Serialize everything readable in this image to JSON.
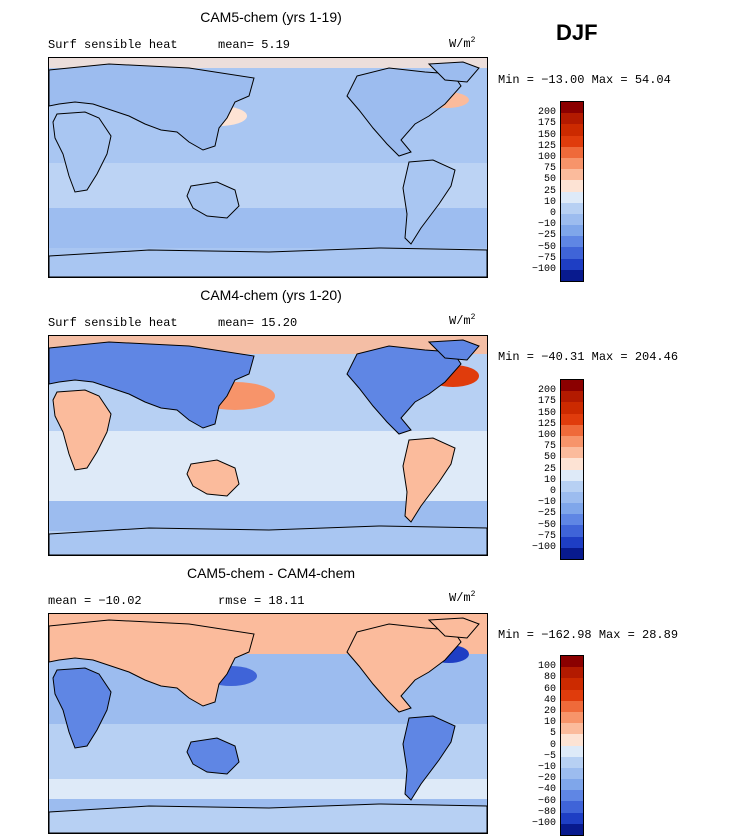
{
  "season": "DJF",
  "panels": [
    {
      "title": "CAM5-chem (yrs 1-19)",
      "left_label": "Surf sensible heat",
      "stat1": "mean=   5.19",
      "stat2": "",
      "units": "W/m",
      "units_sup": "2",
      "minmax": "Min = −13.00 Max =  54.04",
      "levels": [
        "200",
        "175",
        "150",
        "125",
        "100",
        "75",
        "50",
        "25",
        "10",
        "0",
        "−10",
        "−25",
        "−50",
        "−75",
        "−100"
      ],
      "colors": [
        "#8b0000",
        "#b31a00",
        "#cc2a00",
        "#e03c0c",
        "#ef6a3a",
        "#f7946a",
        "#fbbb9c",
        "#fde3d4",
        "#deeaf8",
        "#b7d0f3",
        "#9cbcef",
        "#7fa6ea",
        "#5f86e4",
        "#3f64d8",
        "#1e3ec4",
        "#081a8e"
      ],
      "chart_data": {
        "type": "heatmap",
        "title": "CAM5-chem (yrs 1-19)",
        "variable": "Surf sensible heat",
        "units": "W/m2",
        "mean": 5.19,
        "min": -13.0,
        "max": 54.04,
        "colorbar_levels": [
          200,
          175,
          150,
          125,
          100,
          75,
          50,
          25,
          10,
          0,
          -10,
          -25,
          -50,
          -75,
          -100
        ]
      }
    },
    {
      "title": "CAM4-chem (yrs 1-20)",
      "left_label": "Surf sensible heat",
      "stat1": "mean=  15.20",
      "stat2": "",
      "units": "W/m",
      "units_sup": "2",
      "minmax": "Min = −40.31 Max = 204.46",
      "levels": [
        "200",
        "175",
        "150",
        "125",
        "100",
        "75",
        "50",
        "25",
        "10",
        "0",
        "−10",
        "−25",
        "−50",
        "−75",
        "−100"
      ],
      "colors": [
        "#8b0000",
        "#b31a00",
        "#cc2a00",
        "#e03c0c",
        "#ef6a3a",
        "#f7946a",
        "#fbbb9c",
        "#fde3d4",
        "#deeaf8",
        "#b7d0f3",
        "#9cbcef",
        "#7fa6ea",
        "#5f86e4",
        "#3f64d8",
        "#1e3ec4",
        "#081a8e"
      ],
      "chart_data": {
        "type": "heatmap",
        "title": "CAM4-chem (yrs 1-20)",
        "variable": "Surf sensible heat",
        "units": "W/m2",
        "mean": 15.2,
        "min": -40.31,
        "max": 204.46,
        "colorbar_levels": [
          200,
          175,
          150,
          125,
          100,
          75,
          50,
          25,
          10,
          0,
          -10,
          -25,
          -50,
          -75,
          -100
        ]
      }
    },
    {
      "title": "CAM5-chem - CAM4-chem",
      "left_label": "mean = −10.02",
      "stat1": "",
      "stat2": "rmse =  18.11",
      "units": "W/m",
      "units_sup": "2",
      "minmax": "Min = −162.98 Max =  28.89",
      "levels": [
        "100",
        "80",
        "60",
        "40",
        "20",
        "10",
        "5",
        "0",
        "−5",
        "−10",
        "−20",
        "−40",
        "−60",
        "−80",
        "−100"
      ],
      "colors": [
        "#8b0000",
        "#b31a00",
        "#cc2a00",
        "#e03c0c",
        "#ef6a3a",
        "#f7946a",
        "#fbbb9c",
        "#fde3d4",
        "#deeaf8",
        "#b7d0f3",
        "#9cbcef",
        "#7fa6ea",
        "#5f86e4",
        "#3f64d8",
        "#1e3ec4",
        "#081a8e"
      ],
      "chart_data": {
        "type": "heatmap",
        "title": "CAM5-chem - CAM4-chem",
        "mean": -10.02,
        "rmse": 18.11,
        "units": "W/m2",
        "min": -162.98,
        "max": 28.89,
        "colorbar_levels": [
          100,
          80,
          60,
          40,
          20,
          10,
          5,
          0,
          -5,
          -10,
          -20,
          -40,
          -60,
          -80,
          -100
        ]
      }
    }
  ]
}
